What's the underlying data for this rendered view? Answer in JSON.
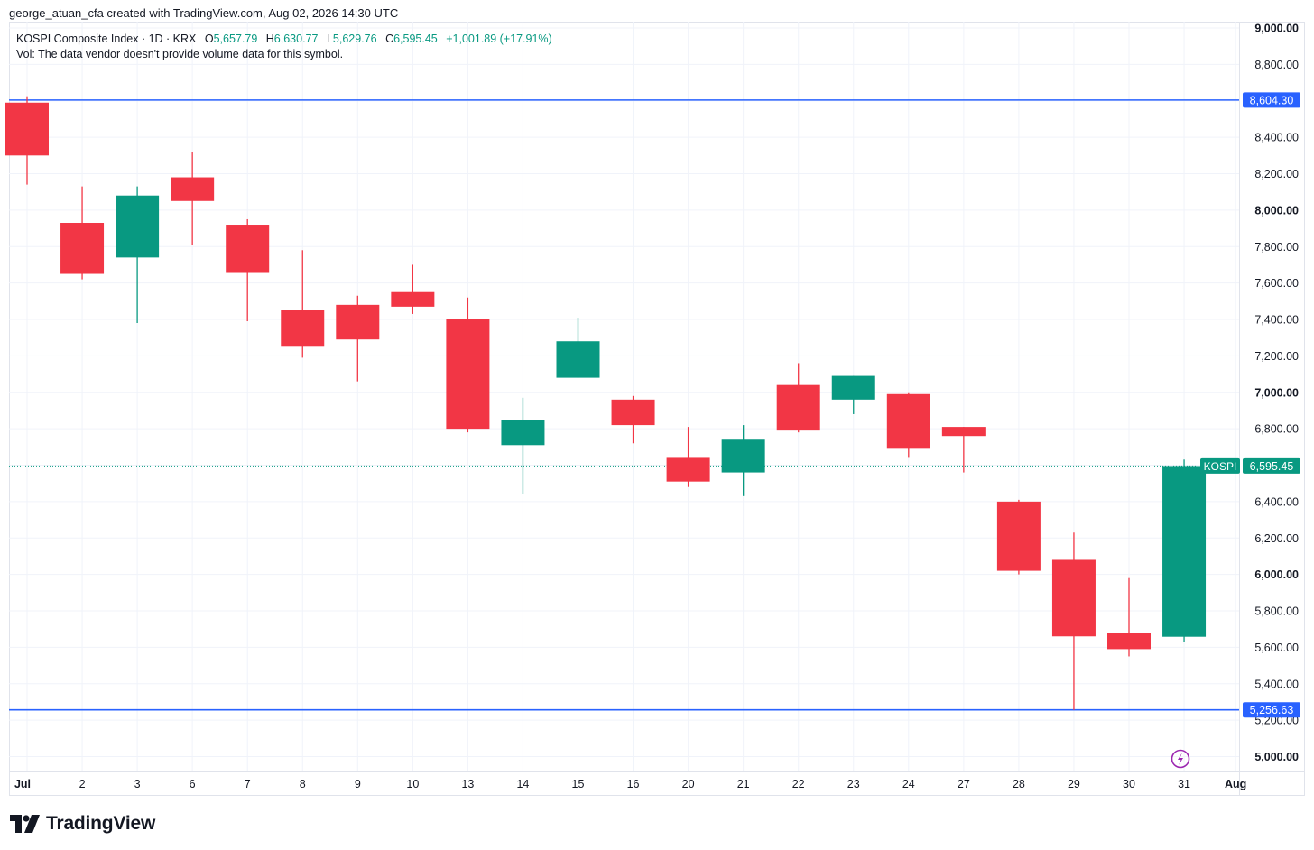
{
  "caption": "george_atuan_cfa created with TradingView.com, Aug 02, 2026 14:30 UTC",
  "legend": {
    "symbol": "KOSPI Composite Index · 1D · KRX",
    "o_label": "O",
    "o_value": "5,657.79",
    "h_label": "H",
    "h_value": "6,630.77",
    "l_label": "L",
    "l_value": "5,629.76",
    "c_label": "C",
    "c_value": "6,595.45",
    "change": "+1,001.89 (+17.91%)",
    "vol_note": "Vol: The data vendor doesn't provide volume data for this symbol."
  },
  "brand": "TradingView",
  "colors": {
    "up": "#089981",
    "down": "#f23645",
    "level_line": "#2962ff",
    "grid": "#f0f3fa",
    "axis_text": "#131722",
    "lightning": "#9c27b0"
  },
  "chart_data": {
    "type": "candlestick",
    "symbol": "KOSPI Composite Index",
    "interval": "1D",
    "exchange": "KRX",
    "ylim": [
      4900,
      9050
    ],
    "y_ticks": [
      5000,
      5200,
      5400,
      5600,
      5800,
      6000,
      6200,
      6400,
      6600,
      6800,
      7000,
      7200,
      7400,
      7600,
      7800,
      8000,
      8200,
      8400,
      8600,
      8800,
      9000
    ],
    "y_tick_labels": [
      "5,000.00",
      "5,200.00",
      "5,400.00",
      "5,600.00",
      "5,800.00",
      "6,000.00",
      "6,200.00",
      "6,400.00",
      "6,600.00",
      "6,800.00",
      "7,000.00",
      "7,200.00",
      "7,400.00",
      "7,600.00",
      "7,800.00",
      "8,000.00",
      "8,200.00",
      "8,400.00",
      "8,600.00",
      "8,800.00",
      "9,000.00"
    ],
    "x_labels": [
      "Jul",
      "2",
      "3",
      "6",
      "7",
      "8",
      "9",
      "10",
      "13",
      "14",
      "15",
      "16",
      "20",
      "21",
      "22",
      "23",
      "24",
      "27",
      "28",
      "29",
      "30",
      "31",
      "Aug"
    ],
    "candles": [
      {
        "o": 8590,
        "h": 8625,
        "l": 8140,
        "c": 8300
      },
      {
        "o": 7930,
        "h": 8130,
        "l": 7620,
        "c": 7650
      },
      {
        "o": 7740,
        "h": 8130,
        "l": 7380,
        "c": 8080
      },
      {
        "o": 8180,
        "h": 8320,
        "l": 7810,
        "c": 8050
      },
      {
        "o": 7920,
        "h": 7950,
        "l": 7390,
        "c": 7660
      },
      {
        "o": 7450,
        "h": 7780,
        "l": 7190,
        "c": 7250
      },
      {
        "o": 7480,
        "h": 7530,
        "l": 7060,
        "c": 7290
      },
      {
        "o": 7550,
        "h": 7700,
        "l": 7430,
        "c": 7470
      },
      {
        "o": 7400,
        "h": 7520,
        "l": 6780,
        "c": 6800
      },
      {
        "o": 6710,
        "h": 6970,
        "l": 6440,
        "c": 6850
      },
      {
        "o": 7080,
        "h": 7410,
        "l": 7080,
        "c": 7280
      },
      {
        "o": 6960,
        "h": 6980,
        "l": 6720,
        "c": 6820
      },
      {
        "o": 6640,
        "h": 6810,
        "l": 6480,
        "c": 6510
      },
      {
        "o": 6560,
        "h": 6820,
        "l": 6430,
        "c": 6740
      },
      {
        "o": 7040,
        "h": 7160,
        "l": 6780,
        "c": 6790
      },
      {
        "o": 6960,
        "h": 7090,
        "l": 6880,
        "c": 7090
      },
      {
        "o": 6990,
        "h": 7000,
        "l": 6640,
        "c": 6690
      },
      {
        "o": 6810,
        "h": 6810,
        "l": 6560,
        "c": 6760
      },
      {
        "o": 6400,
        "h": 6410,
        "l": 6000,
        "c": 6020
      },
      {
        "o": 6080,
        "h": 6230,
        "l": 5256.63,
        "c": 5660
      },
      {
        "o": 5680,
        "h": 5980,
        "l": 5550,
        "c": 5590
      },
      {
        "o": 5657.79,
        "h": 6630.77,
        "l": 5629.76,
        "c": 6595.45
      }
    ],
    "levels": [
      {
        "value": 8604.3,
        "label": "8,604.30"
      },
      {
        "value": 5256.63,
        "label": "5,256.63"
      }
    ],
    "last_price": {
      "value": 6595.45,
      "label": "6,595.45",
      "tag": "KOSPI"
    }
  }
}
